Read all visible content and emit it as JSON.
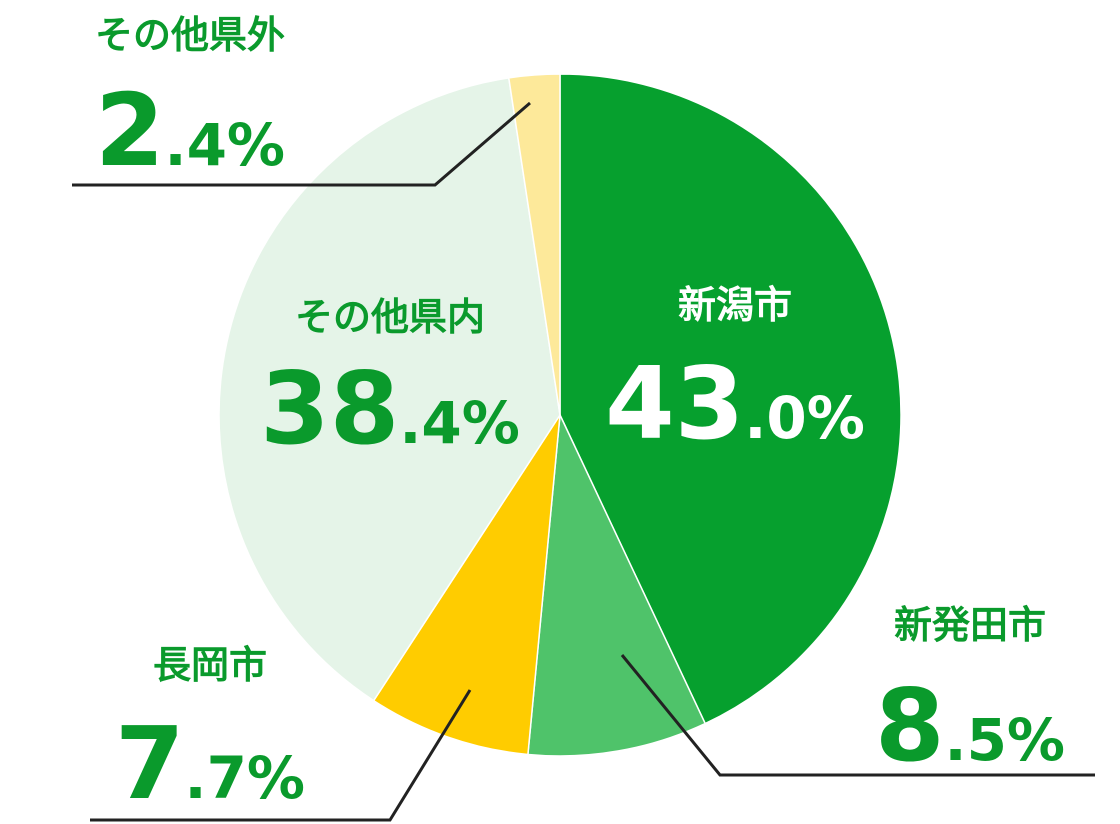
{
  "chart_data": {
    "type": "pie",
    "categories": [
      "新潟市",
      "新発田市",
      "長岡市",
      "その他県内",
      "その他県外"
    ],
    "values": [
      43.0,
      8.5,
      7.7,
      38.4,
      2.4
    ],
    "value_labels": [
      "43.0%",
      "8.5%",
      "7.7%",
      "38.4%",
      "2.4%"
    ],
    "colors": [
      "#06a02e",
      "#4fc36a",
      "#ffcc00",
      "#e5f4e8",
      "#fde99a"
    ]
  }
}
